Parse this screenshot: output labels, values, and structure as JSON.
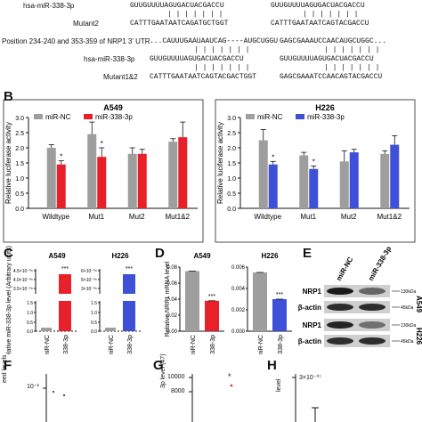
{
  "panel_a": {
    "rows": [
      {
        "label": "hsa-miR-338-3p",
        "left": "GUUGUUUUAGUGACUACGACCU",
        "right": "GUUGUUUUAGUGACUACGACCU"
      },
      {
        "label": "Mutant2",
        "left": "CATTTGAATAATCAGATGCTGGT",
        "right": "CATTTGAATAATCAGTACGACCU"
      },
      {
        "label": "Position 234-240 and 353-359 of NRP1 3' UTR",
        "left": "...CAUUUGAAUAAUCAG----AUGCUGGU",
        "right": "GAGCGAAAUCCAACAUGCUGGC..."
      },
      {
        "label": "hsa-miR-338-3p",
        "left": "GUUGUUUUAGUGACUACGACCU",
        "right": "GUUGUUUUAGUGACUACGACCU"
      },
      {
        "label": "Mutant1&2",
        "left": "CATTTGAATAATCAGTACGACTGGT",
        "right": "GAGCGAAATCCAACAGTACGACCU"
      }
    ]
  },
  "panel_b": {
    "letter": "B",
    "ylabel": "Relative luciferase activity",
    "legend": [
      "miR-NC",
      "miR-338-3p"
    ],
    "colors": {
      "nc": "#9e9e9e",
      "a549": "#e8202a",
      "h226": "#3e50d8"
    },
    "chart_data": [
      {
        "type": "bar",
        "title": "A549",
        "ylabel": "Relative luciferase activity",
        "categories": [
          "Wildtype",
          "Mut1",
          "Mut2",
          "Mut1&2"
        ],
        "ylim": [
          0,
          3.0
        ],
        "yticks": [
          "0.0",
          "0.5",
          "1.0",
          "1.5",
          "2.0",
          "2.5",
          "3.0"
        ],
        "series": [
          {
            "name": "miR-NC",
            "values": [
              2.0,
              2.45,
              1.8,
              2.2
            ],
            "errors": [
              0.1,
              0.4,
              0.2,
              0.1
            ]
          },
          {
            "name": "miR-338-3p",
            "values": [
              1.45,
              1.7,
              1.8,
              2.35
            ],
            "errors": [
              0.12,
              0.3,
              0.15,
              0.5
            ]
          }
        ],
        "annotations": [
          "*",
          "*",
          "",
          ""
        ]
      },
      {
        "type": "bar",
        "title": "H226",
        "ylabel": "Relative luciferase activity",
        "categories": [
          "Wildtype",
          "Mut1",
          "Mut2",
          "Mut1&2"
        ],
        "ylim": [
          0,
          3.0
        ],
        "yticks": [
          "0.0",
          "0.5",
          "1.0",
          "1.5",
          "2.0",
          "2.5",
          "3.0"
        ],
        "series": [
          {
            "name": "miR-NC",
            "values": [
              2.25,
              1.75,
              1.55,
              1.8
            ],
            "errors": [
              0.35,
              0.1,
              0.35,
              0.1
            ]
          },
          {
            "name": "miR-338-3p",
            "values": [
              1.45,
              1.3,
              1.85,
              2.1
            ],
            "errors": [
              0.1,
              0.1,
              0.1,
              0.3
            ]
          }
        ],
        "annotations": [
          "*",
          "*",
          "",
          ""
        ]
      }
    ]
  },
  "panel_c": {
    "letter": "C",
    "ylabel": "Relative miR-338-3p level (Arbitrary units)",
    "groups": [
      {
        "title": "A549",
        "ticks": [
          "4.5×10⁻⁰⁶",
          "4.0×10⁻⁰⁶",
          "3.5×10⁻⁰⁶",
          "1.5",
          "1.0",
          "0.5",
          "0.0"
        ],
        "categories": [
          "miR-NC",
          "miR-338-3p"
        ],
        "values": [
          0.15,
          1.0
        ],
        "star": "***",
        "color": "#e8202a"
      },
      {
        "title": "H226",
        "ticks": [
          "6×10⁻⁰⁶",
          "5×10⁻⁰⁶",
          "3×10⁻⁰⁶",
          "1.5",
          "1.0",
          "0.5",
          "0.0"
        ],
        "categories": [
          "miR-NC",
          "miR-338-3p"
        ],
        "values": [
          0.15,
          1.0
        ],
        "star": "***",
        "color": "#3e50d8"
      }
    ]
  },
  "panel_d": {
    "letter": "D",
    "ylabel": "Relative NRP1 mRNA level",
    "chart_data": [
      {
        "type": "bar",
        "title": "A549",
        "categories": [
          "miR-NC",
          "miR-338-3p"
        ],
        "values": [
          0.075,
          0.038
        ],
        "ylim": [
          0,
          0.08
        ],
        "yticks": [
          "0.00",
          "0.02",
          "0.04",
          "0.06",
          "0.08"
        ],
        "star": "***",
        "color": "#e8202a"
      },
      {
        "type": "bar",
        "title": "H226",
        "categories": [
          "miR-NC",
          "miR-338-3p"
        ],
        "values": [
          0.0055,
          0.003
        ],
        "ylim": [
          0,
          0.006
        ],
        "yticks": [
          "0.000",
          "0.002",
          "0.004",
          "0.006"
        ],
        "star": "***",
        "color": "#3e50d8"
      }
    ]
  },
  "panel_e": {
    "letter": "E",
    "columns": [
      "miR-NC",
      "miR-338-3p"
    ],
    "rows": [
      {
        "label": "NRP1",
        "size": "130kDa"
      },
      {
        "label": "β-actin",
        "size": "45kDa"
      },
      {
        "label": "NRP1",
        "size": "130kDa"
      },
      {
        "label": "β-actin",
        "size": "45kDa"
      }
    ],
    "cell_lines": [
      "A549",
      "H226"
    ]
  },
  "panel_f": {
    "letter": "F",
    "ylabel_fragment": "eed levels",
    "tick": "10⁻²"
  },
  "panel_g": {
    "letter": "G",
    "ylabel_fragment": "3p level (47)",
    "ticks": [
      "10000",
      "8000"
    ],
    "star": "*"
  },
  "panel_h": {
    "letter": "H",
    "ylabel_fragment": "level",
    "tick": "3×10⁻⁰⁷"
  }
}
